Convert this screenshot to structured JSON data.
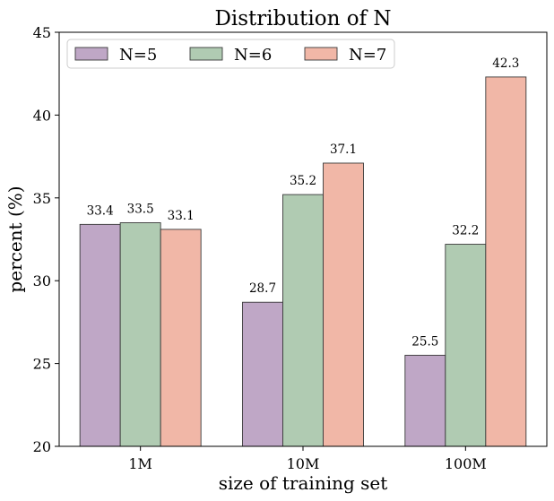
{
  "chart_data": {
    "type": "bar",
    "title": "Distribution of N",
    "xlabel": "size of training set",
    "ylabel": "percent (%)",
    "categories": [
      "1M",
      "10M",
      "100M"
    ],
    "series": [
      {
        "name": "N=5",
        "color": "#bfa7c6",
        "values": [
          33.4,
          28.7,
          25.5
        ]
      },
      {
        "name": "N=6",
        "color": "#b0cbb2",
        "values": [
          33.5,
          35.2,
          32.2
        ]
      },
      {
        "name": "N=7",
        "color": "#f1b7a7",
        "values": [
          33.1,
          37.1,
          42.3
        ]
      }
    ],
    "ylim": [
      20,
      45
    ],
    "yticks": [
      20,
      25,
      30,
      35,
      40,
      45
    ],
    "grid": false,
    "legend_position": "top-left",
    "data_labels": true
  }
}
